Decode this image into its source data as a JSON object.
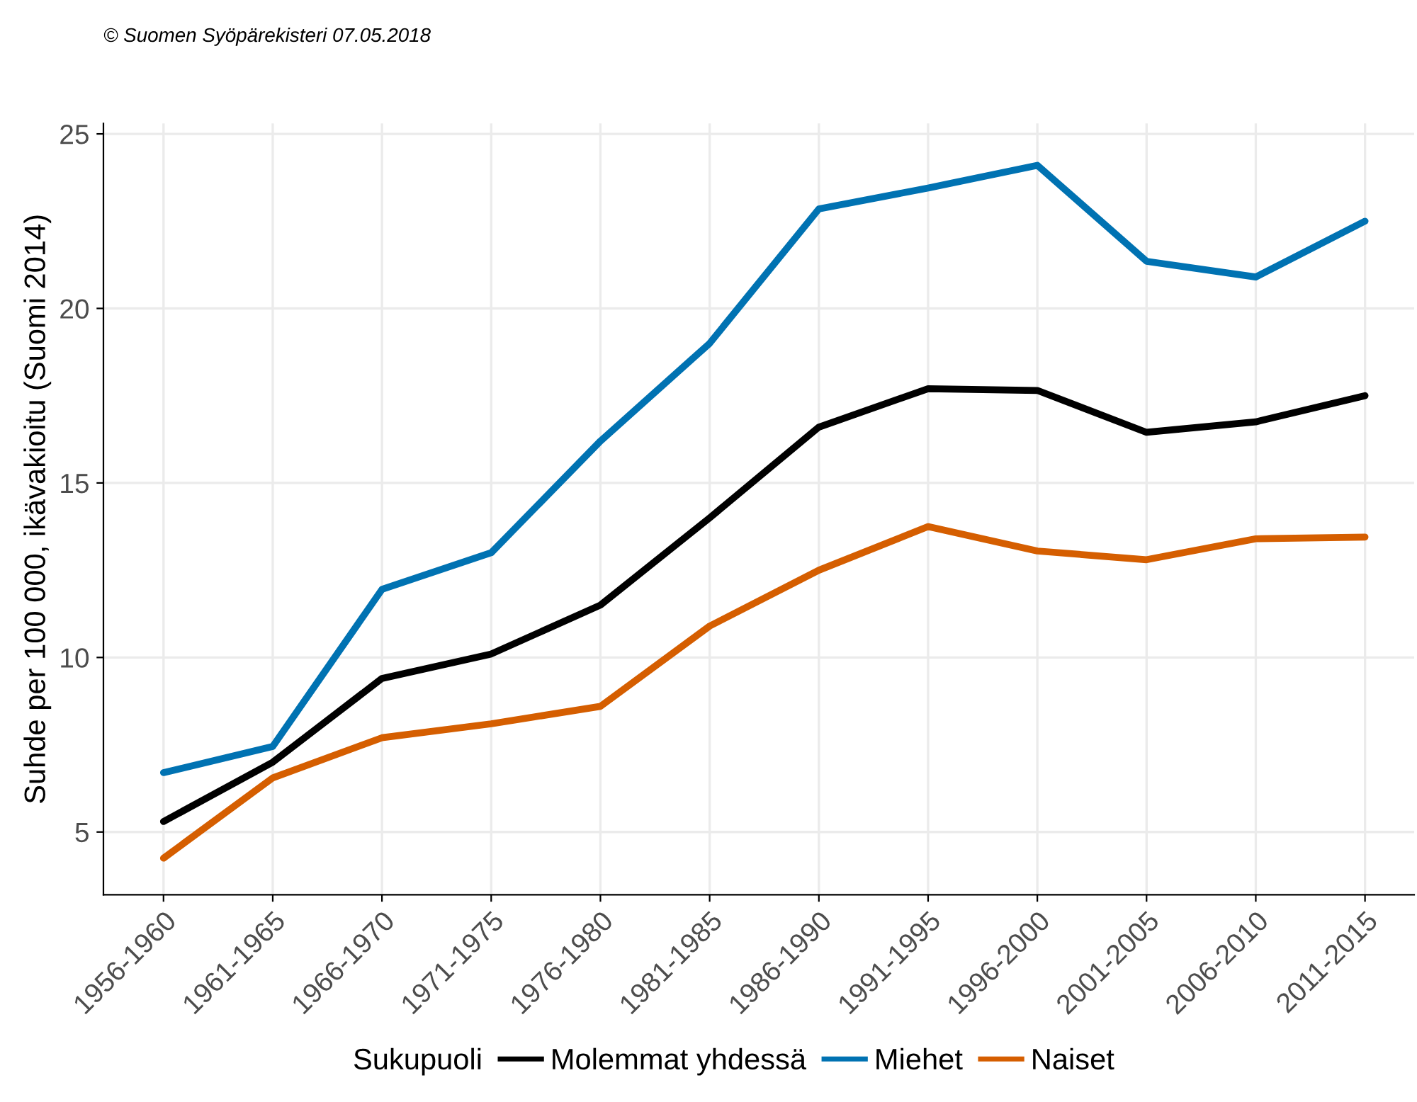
{
  "chart_data": {
    "type": "line",
    "ylabel": "Suhde per 100 000, ikävakioitu (Suomi 2014)",
    "legend_title": "Sukupuoli",
    "annotations": [
      "© Suomen Syöpärekisteri 07.05.2018"
    ],
    "categories": [
      "1956-1960",
      "1961-1965",
      "1966-1970",
      "1971-1975",
      "1976-1980",
      "1981-1985",
      "1986-1990",
      "1991-1995",
      "1996-2000",
      "2001-2005",
      "2006-2010",
      "2011-2015"
    ],
    "series": [
      {
        "name": "Molemmat yhdessä",
        "color": "#000000",
        "values": [
          5.3,
          7.0,
          9.4,
          10.1,
          11.5,
          14.0,
          16.6,
          17.7,
          17.65,
          16.45,
          16.75,
          17.5
        ]
      },
      {
        "name": "Miehet",
        "color": "#0072b2",
        "values": [
          6.7,
          7.45,
          11.95,
          13.0,
          16.2,
          19.0,
          22.85,
          23.45,
          24.1,
          21.35,
          20.9,
          22.5
        ]
      },
      {
        "name": "Naiset",
        "color": "#d55e00",
        "values": [
          4.25,
          6.55,
          7.7,
          8.1,
          8.6,
          10.9,
          12.5,
          13.75,
          13.05,
          12.8,
          13.4,
          13.45
        ]
      }
    ],
    "ylim": [
      3.2,
      25.3
    ],
    "yticks": [
      5,
      10,
      15,
      20,
      25
    ],
    "grid": true,
    "legend": "bottom",
    "marker": "none",
    "line_style": "solid"
  }
}
